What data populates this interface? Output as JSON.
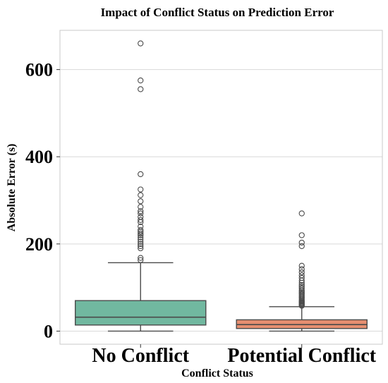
{
  "chart_data": {
    "type": "box",
    "title": "Impact of Conflict Status on Prediction Error",
    "xlabel": "Conflict Status",
    "ylabel": "Absolute Error (s)",
    "ylim": [
      -30,
      690
    ],
    "yticks": [
      0,
      200,
      400,
      600
    ],
    "ytick_labels": [
      "0",
      "200",
      "400",
      "600"
    ],
    "grid": true,
    "categories": [
      "No Conflict",
      "Potential Conflict"
    ],
    "series": [
      {
        "category": "No Conflict",
        "color": "#71b8a0",
        "whisker_low": 0,
        "q1": 14,
        "median": 32,
        "q3": 70,
        "whisker_high": 157,
        "outliers": [
          660,
          575,
          555,
          360,
          325,
          312,
          298,
          285,
          275,
          270,
          262,
          255,
          250,
          240,
          232,
          228,
          224,
          220,
          215,
          210,
          205,
          200,
          195,
          190,
          168,
          163
        ]
      },
      {
        "category": "Potential Conflict",
        "color": "#e58e70",
        "whisker_low": 0,
        "q1": 6,
        "median": 15,
        "q3": 26,
        "whisker_high": 56,
        "outliers": [
          270,
          220,
          203,
          195,
          150,
          142,
          135,
          128,
          122,
          116,
          111,
          106,
          102,
          98,
          94,
          91,
          88,
          85,
          82,
          79,
          76,
          73,
          70,
          68,
          66,
          64,
          62,
          60,
          58
        ]
      }
    ]
  }
}
